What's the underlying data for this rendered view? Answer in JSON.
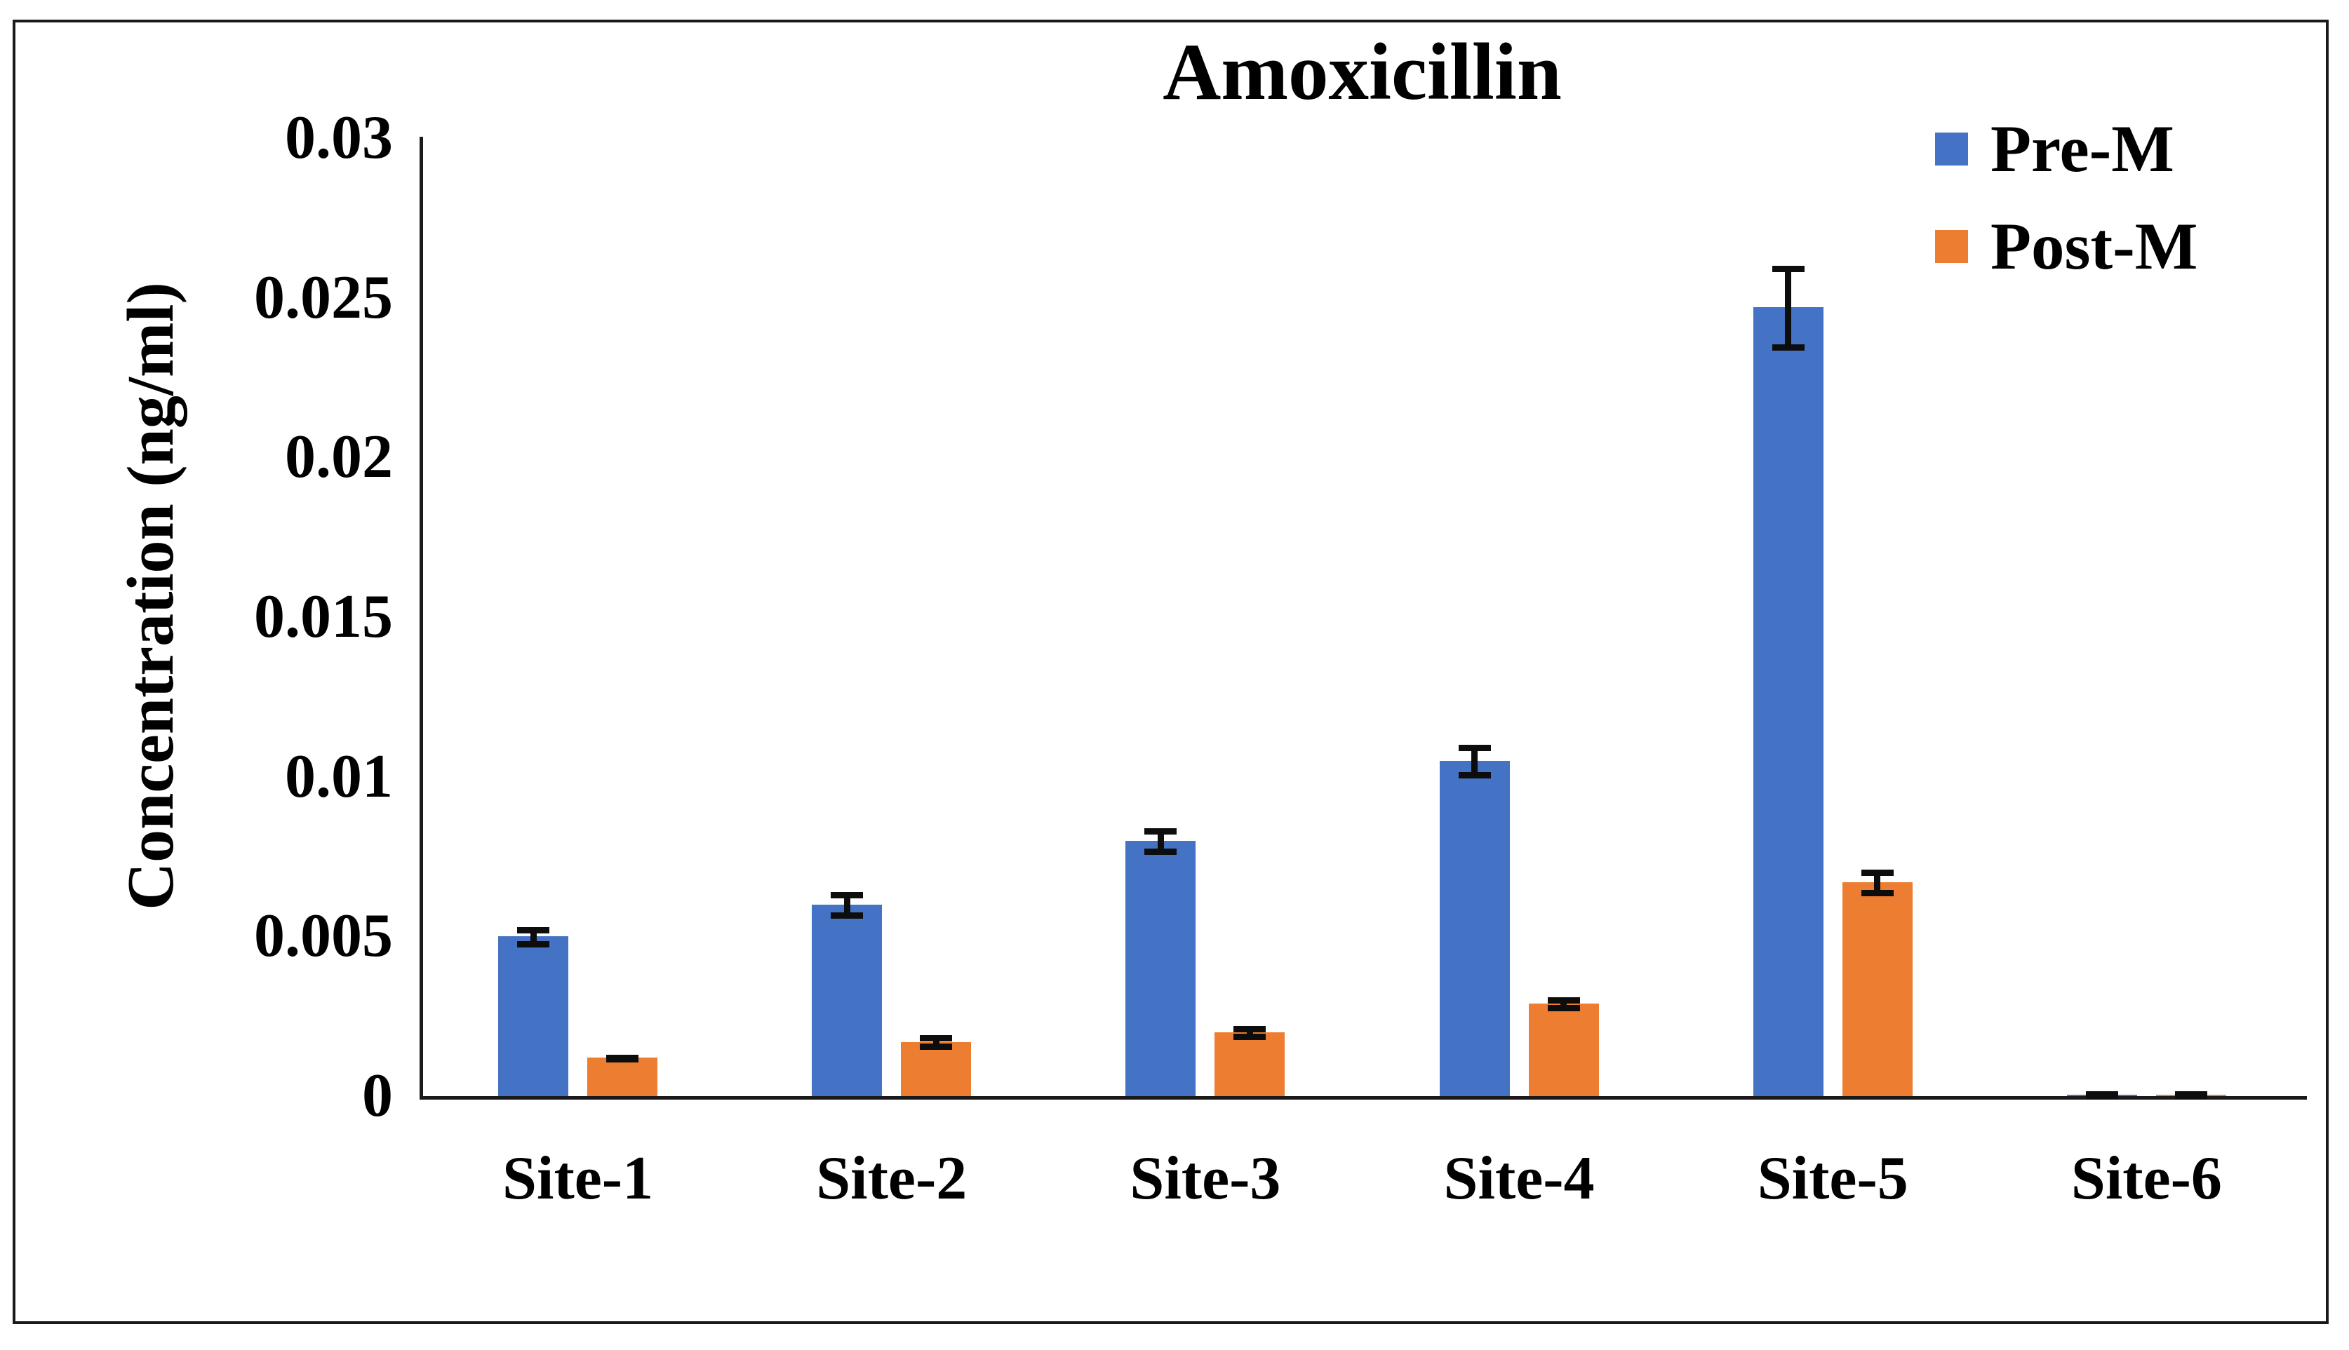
{
  "chart_data": {
    "type": "bar",
    "title": "Amoxicillin",
    "categories": [
      "Site-1",
      "Site-2",
      "Site-3",
      "Site-4",
      "Site-5",
      "Site-6"
    ],
    "series": [
      {
        "name": "Pre-M",
        "color": "#4472C4",
        "values": [
          0.005,
          0.006,
          0.008,
          0.0105,
          0.0247,
          5e-05
        ],
        "errors": [
          0.0003,
          0.0004,
          0.0004,
          0.0005,
          0.0013,
          5e-05
        ]
      },
      {
        "name": "Post-M",
        "color": "#ED7D31",
        "values": [
          0.0012,
          0.0017,
          0.002,
          0.0029,
          0.0067,
          5e-05
        ],
        "errors": [
          0.0001,
          0.0002,
          0.0002,
          0.0002,
          0.0004,
          5e-05
        ]
      }
    ],
    "xlabel": "",
    "ylabel": "Concentration (ng/ml)",
    "ylim": [
      0,
      0.03
    ],
    "y_ticks": [
      0,
      0.005,
      0.01,
      0.015,
      0.02,
      0.025,
      0.03
    ],
    "y_tick_labels": [
      "0",
      "0.005",
      "0.01",
      "0.015",
      "0.02",
      "0.025",
      "0.03"
    ],
    "grid": false,
    "error_bars": true,
    "legend_position": "top-right",
    "axis_color": "#1a1a1a",
    "error_bar_color": "#0d0d0d"
  }
}
